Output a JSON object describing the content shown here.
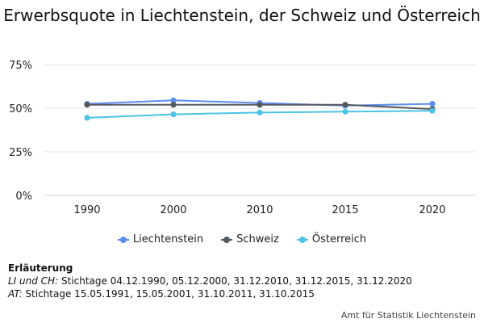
{
  "chart_data": {
    "type": "line",
    "title": "Erwerbsquote in Liechtenstein, der Schweiz und Österreich",
    "categories": [
      "1990",
      "2000",
      "2010",
      "2015",
      "2020"
    ],
    "y_ticks": [
      "0%",
      "25%",
      "50%",
      "75%"
    ],
    "ylim": [
      0,
      75
    ],
    "grid": true,
    "legend_position": "bottom",
    "series": [
      {
        "name": "Liechtenstein",
        "color": "#5b8def",
        "values": [
          52.5,
          54.5,
          53.0,
          51.5,
          52.5
        ]
      },
      {
        "name": "Schweiz",
        "color": "#555a5f",
        "values": [
          52.0,
          52.0,
          52.0,
          52.0,
          49.5
        ]
      },
      {
        "name": "Österreich",
        "color": "#4cc3e6",
        "values": [
          44.5,
          46.5,
          47.5,
          48.0,
          48.5
        ]
      }
    ]
  },
  "notes": {
    "heading": "Erläuterung",
    "lines": [
      {
        "label": "LI und CH:",
        "text": " Stichtage 04.12.1990, 05.12.2000, 31.12.2010, 31.12.2015, 31.12.2020"
      },
      {
        "label": "AT:",
        "text": " Stichtage 15.05.1991, 15.05.2001, 31.10.2011, 31.10.2015"
      }
    ]
  },
  "source": "Amt für Statistik Liechtenstein"
}
